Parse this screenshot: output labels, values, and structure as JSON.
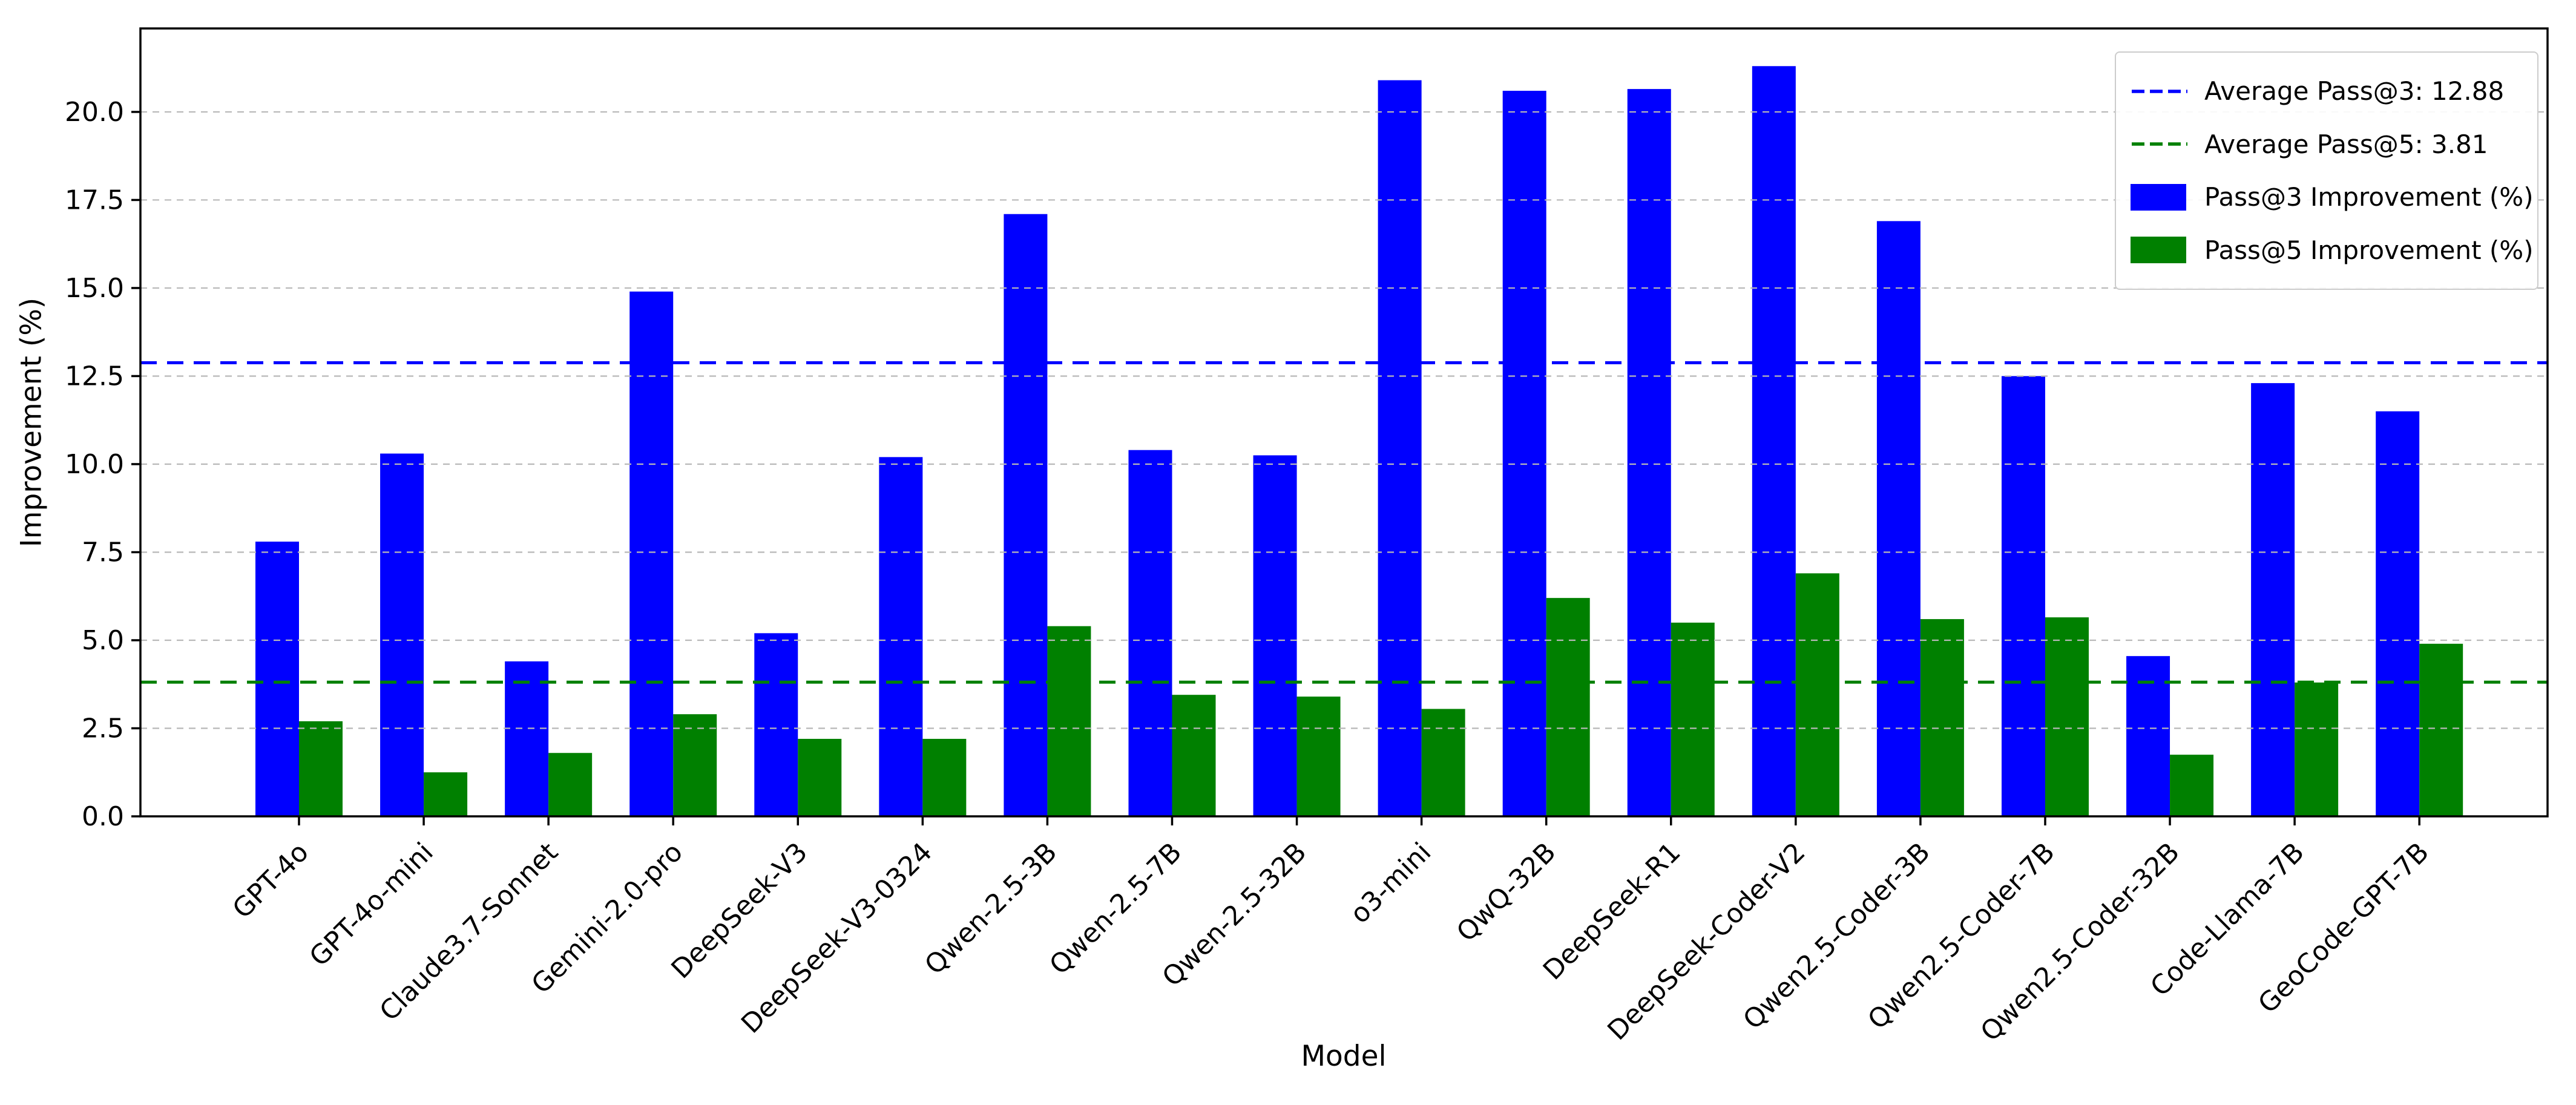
{
  "figure": {
    "xlabel": "Model",
    "ylabel": "Improvement (%)"
  },
  "legend": {
    "position": "upper right",
    "items": [
      {
        "label": "Average Pass@3: 12.88",
        "type": "dashed-line",
        "color": "#0000ff"
      },
      {
        "label": "Average Pass@5: 3.81",
        "type": "dashed-line",
        "color": "#008000"
      },
      {
        "label": "Pass@3 Improvement (%)",
        "type": "filled-rect",
        "color": "#0000ff"
      },
      {
        "label": "Pass@5 Improvement (%)",
        "type": "filled-rect",
        "color": "#008000"
      }
    ]
  },
  "chart_data": {
    "type": "bar",
    "title": "",
    "xlabel": "Model",
    "ylabel": "Improvement (%)",
    "categories": [
      "GPT-4o",
      "GPT-4o-mini",
      "Claude3.7-Sonnet",
      "Gemini-2.0-pro",
      "DeepSeek-V3",
      "DeepSeek-V3-0324",
      "Qwen-2.5-3B",
      "Qwen-2.5-7B",
      "Qwen-2.5-32B",
      "o3-mini",
      "QwQ-32B",
      "DeepSeek-R1",
      "DeepSeek-Coder-V2",
      "Qwen2.5-Coder-3B",
      "Qwen2.5-Coder-7B",
      "Qwen2.5-Coder-32B",
      "Code-Llama-7B",
      "GeoCode-GPT-7B"
    ],
    "series": [
      {
        "name": "Pass@3 Improvement (%)",
        "color": "#0000ff",
        "values": [
          7.8,
          10.3,
          4.4,
          14.9,
          5.2,
          10.2,
          17.1,
          10.4,
          10.25,
          20.9,
          20.6,
          20.65,
          21.3,
          16.9,
          12.5,
          4.55,
          12.3,
          11.5
        ]
      },
      {
        "name": "Pass@5 Improvement (%)",
        "color": "#008000",
        "values": [
          2.7,
          1.25,
          1.8,
          2.9,
          2.2,
          2.2,
          5.4,
          3.45,
          3.4,
          3.05,
          6.2,
          5.5,
          6.9,
          5.6,
          5.65,
          1.75,
          3.8,
          4.9
        ]
      }
    ],
    "reference_lines": [
      {
        "label": "Average Pass@3: 12.88",
        "value": 12.88,
        "color": "#0000ff",
        "style": "dashed"
      },
      {
        "label": "Average Pass@5: 3.81",
        "value": 3.81,
        "color": "#008000",
        "style": "dashed"
      }
    ],
    "yticks": [
      0.0,
      2.5,
      5.0,
      7.5,
      10.0,
      12.5,
      15.0,
      17.5,
      20.0
    ],
    "ylim": [
      0,
      22.37
    ],
    "grid": true,
    "grid_color": "#b8b8b8",
    "legend_position": "upper right",
    "xtick_rotation": 45
  }
}
